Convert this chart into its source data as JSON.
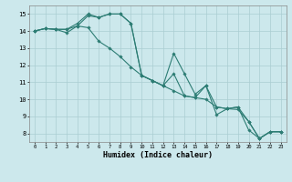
{
  "title": "",
  "xlabel": "Humidex (Indice chaleur)",
  "xlim": [
    -0.5,
    23.5
  ],
  "ylim": [
    7.5,
    15.5
  ],
  "yticks": [
    8,
    9,
    10,
    11,
    12,
    13,
    14,
    15
  ],
  "xticks": [
    0,
    1,
    2,
    3,
    4,
    5,
    6,
    7,
    8,
    9,
    10,
    11,
    12,
    13,
    14,
    15,
    16,
    17,
    18,
    19,
    20,
    21,
    22,
    23
  ],
  "bg_color": "#cce8ec",
  "grid_color": "#aacdd2",
  "line_color": "#2d7d74",
  "series": [
    [
      14.0,
      14.15,
      14.1,
      14.1,
      14.45,
      15.0,
      14.8,
      15.0,
      15.0,
      14.45,
      11.4,
      11.1,
      10.8,
      12.7,
      11.5,
      10.3,
      10.8,
      9.55,
      9.45,
      9.55,
      8.2,
      7.7,
      8.1,
      8.1
    ],
    [
      14.0,
      14.15,
      14.1,
      14.1,
      14.3,
      14.2,
      13.4,
      13.0,
      12.5,
      11.9,
      11.4,
      11.1,
      10.8,
      10.5,
      10.2,
      10.1,
      10.0,
      9.55,
      9.45,
      9.4,
      8.7,
      7.7,
      8.1,
      8.1
    ],
    [
      14.0,
      14.15,
      14.1,
      13.9,
      14.3,
      14.9,
      14.8,
      15.0,
      15.0,
      14.45,
      11.4,
      11.1,
      10.8,
      11.5,
      10.2,
      10.1,
      10.8,
      9.1,
      9.45,
      9.55,
      8.7,
      7.7,
      8.1,
      8.1
    ]
  ]
}
